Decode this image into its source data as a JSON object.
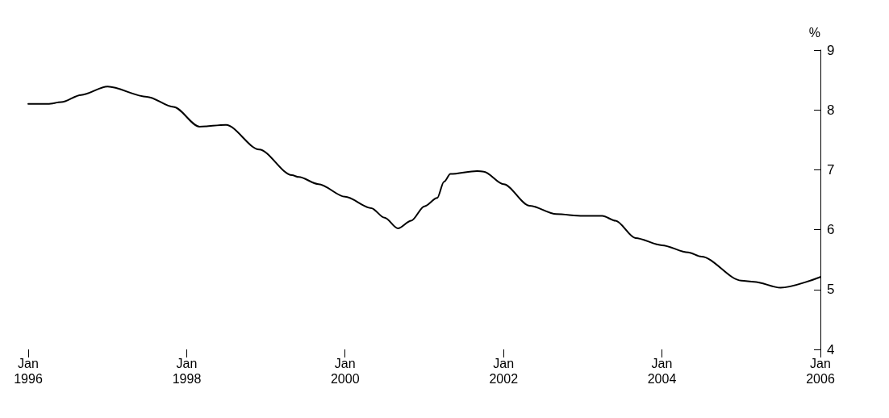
{
  "chart_data": {
    "type": "line",
    "ylabel": "%",
    "x": [
      "1996-01",
      "1996-04",
      "1996-06",
      "1996-09",
      "1997-01",
      "1997-07",
      "1997-11",
      "1998-03",
      "1998-07",
      "1998-12",
      "1999-05",
      "1999-06",
      "1999-09",
      "2000-01",
      "2000-05",
      "2000-07",
      "2000-09",
      "2000-11",
      "2001-01",
      "2001-03",
      "2001-04",
      "2001-05",
      "2001-09",
      "2001-10",
      "2002-01",
      "2002-05",
      "2002-09",
      "2003-01",
      "2003-04",
      "2003-06",
      "2003-09",
      "2004-01",
      "2004-05",
      "2004-07",
      "2005-01",
      "2005-03",
      "2005-07",
      "2006-01"
    ],
    "series": [
      {
        "color": "#000000",
        "values": [
          8.1,
          8.1,
          8.13,
          8.25,
          8.39,
          8.22,
          8.05,
          7.72,
          7.75,
          7.34,
          6.91,
          6.88,
          6.76,
          6.55,
          6.36,
          6.2,
          6.02,
          6.15,
          6.39,
          6.53,
          6.8,
          6.93,
          6.98,
          6.97,
          6.76,
          6.4,
          6.26,
          6.23,
          6.23,
          6.15,
          5.86,
          5.74,
          5.62,
          5.55,
          5.15,
          5.13,
          5.03,
          5.21
        ]
      }
    ],
    "xlim": [
      "1996-01",
      "2006-01"
    ],
    "xticks": [
      {
        "value": "1996-01",
        "label": "Jan\n1996"
      },
      {
        "value": "1998-01",
        "label": "Jan\n1998"
      },
      {
        "value": "2000-01",
        "label": "Jan\n2000"
      },
      {
        "value": "2002-01",
        "label": "Jan\n2002"
      },
      {
        "value": "2004-01",
        "label": "Jan\n2004"
      },
      {
        "value": "2006-01",
        "label": "Jan\n2006"
      }
    ],
    "ylim": [
      4,
      9
    ],
    "yticks": [
      4,
      5,
      6,
      7,
      8,
      9
    ],
    "marker": "none",
    "line_style": "solid"
  }
}
